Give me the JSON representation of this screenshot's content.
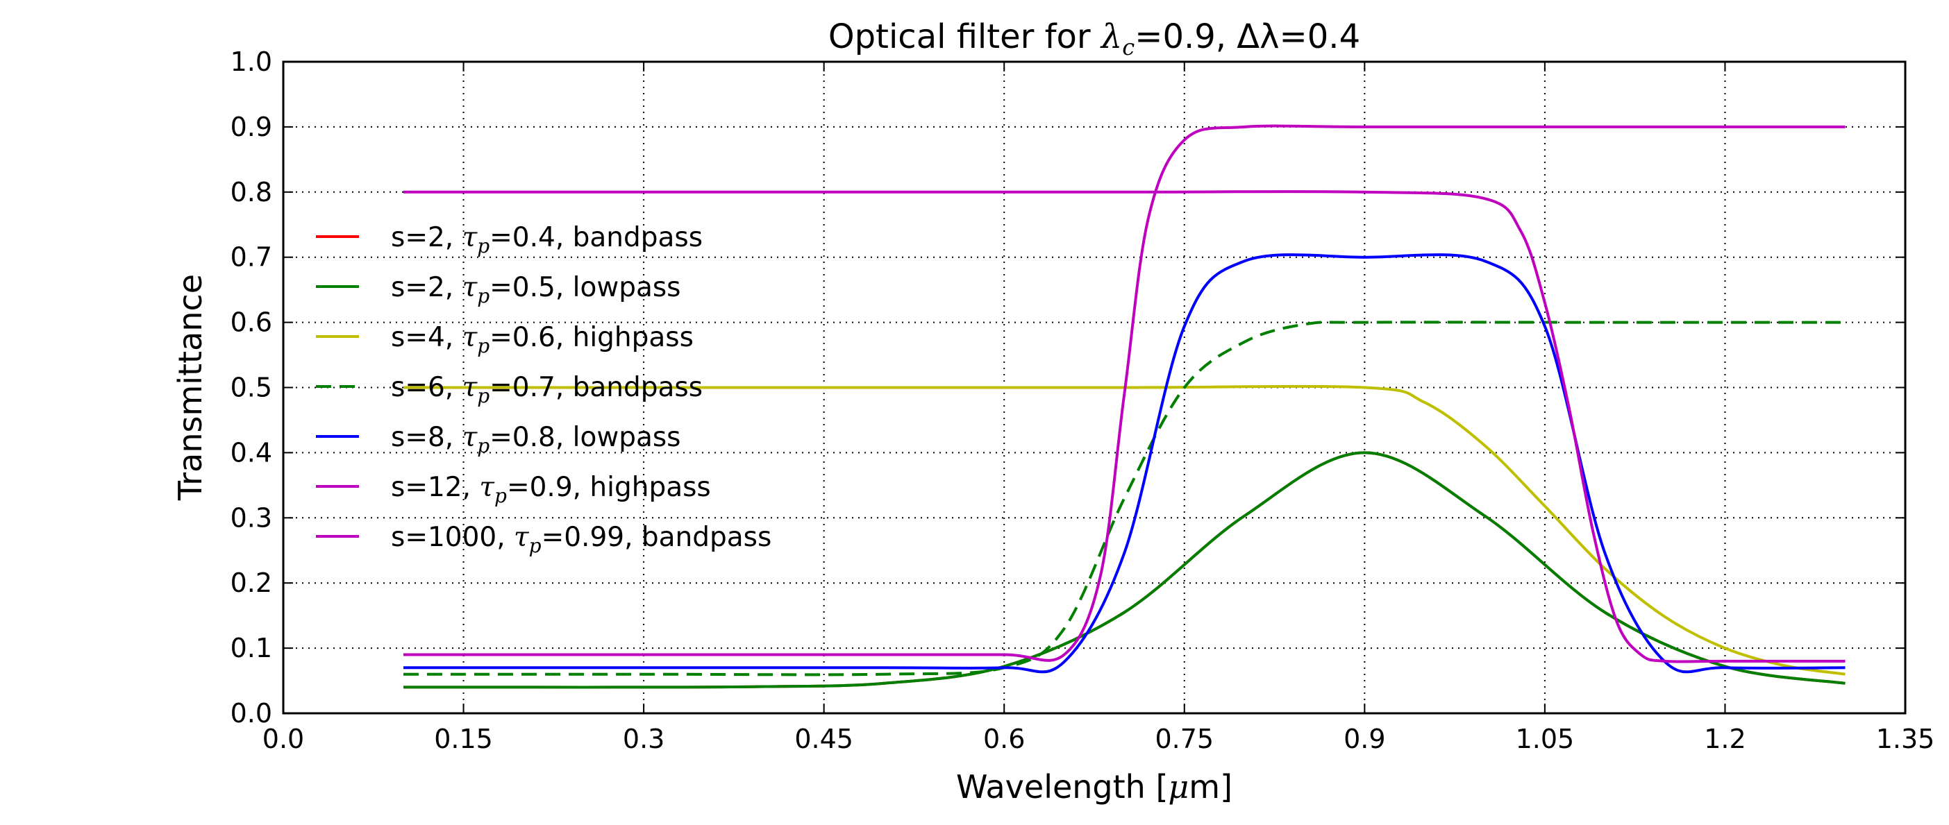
{
  "chart_data": {
    "type": "line",
    "title": "Optical filter for λ_c=0.9, Δλ=0.4",
    "title_parts": {
      "prefix": "Optical filter for ",
      "lambda": "λ",
      "sub_c": "c",
      "mid": "=0.9, ",
      "delta_lambda": "Δλ",
      "suffix": "=0.4"
    },
    "xlabel": "Wavelength [μm]",
    "xlabel_parts": {
      "prefix": "Wavelength [",
      "mu": "μ",
      "suffix": "m]"
    },
    "ylabel": "Transmittance",
    "xlim": [
      0.0,
      1.35
    ],
    "ylim": [
      0.0,
      1.0
    ],
    "xticks": [
      0.0,
      0.15,
      0.3,
      0.45,
      0.6,
      0.75,
      0.9,
      1.05,
      1.2,
      1.35
    ],
    "xtick_labels": [
      "0.0",
      "0.15",
      "0.3",
      "0.45",
      "0.6",
      "0.75",
      "0.9",
      "1.05",
      "1.2",
      "1.35"
    ],
    "yticks": [
      0.0,
      0.1,
      0.2,
      0.3,
      0.4,
      0.5,
      0.6,
      0.7,
      0.8,
      0.9,
      1.0
    ],
    "ytick_labels": [
      "0.0",
      "0.1",
      "0.2",
      "0.3",
      "0.4",
      "0.5",
      "0.6",
      "0.7",
      "0.8",
      "0.9",
      "1.0"
    ],
    "grid": true,
    "legend_position": "center-left",
    "series": [
      {
        "name": "s=2, τp=0.4, bandpass",
        "s": 2,
        "tau_p": 0.4,
        "kind": "bandpass",
        "color": "#ff0000",
        "style": "solid",
        "label": {
          "prefix": "s=2, ",
          "tau": "τ",
          "sub": "p",
          "suffix": "=0.4, bandpass"
        },
        "x": [
          0.1,
          0.2,
          0.3,
          0.4,
          0.5,
          0.6,
          0.7,
          0.8,
          0.9,
          1.0,
          1.1,
          1.2,
          1.3
        ],
        "y": [
          0.04,
          0.04,
          0.04,
          0.041,
          0.046,
          0.072,
          0.155,
          0.303,
          0.4,
          0.303,
          0.155,
          0.072,
          0.046
        ]
      },
      {
        "name": "s=2, τp=0.5, lowpass",
        "s": 2,
        "tau_p": 0.5,
        "kind": "lowpass",
        "color": "#007f00",
        "style": "solid",
        "label": {
          "prefix": "s=2, ",
          "tau": "τ",
          "sub": "p",
          "suffix": "=0.5, lowpass"
        },
        "x": [
          0.1,
          0.2,
          0.3,
          0.4,
          0.5,
          0.6,
          0.7,
          0.8,
          0.9,
          1.0,
          1.1,
          1.2,
          1.3
        ],
        "y": [
          0.04,
          0.04,
          0.04,
          0.041,
          0.046,
          0.072,
          0.155,
          0.303,
          0.4,
          0.303,
          0.155,
          0.072,
          0.046
        ]
      },
      {
        "name": "s=4, τp=0.6, highpass",
        "s": 4,
        "tau_p": 0.6,
        "kind": "highpass",
        "color": "#bfbf00",
        "style": "solid",
        "label": {
          "prefix": "s=4, ",
          "tau": "τ",
          "sub": "p",
          "suffix": "=0.6, highpass"
        },
        "x": [
          0.1,
          0.3,
          0.5,
          0.7,
          0.9,
          0.95,
          1.0,
          1.05,
          1.1,
          1.15,
          1.2,
          1.25,
          1.3
        ],
        "y": [
          0.5,
          0.5,
          0.5,
          0.5,
          0.5,
          0.477,
          0.411,
          0.318,
          0.222,
          0.148,
          0.1,
          0.073,
          0.06
        ]
      },
      {
        "name": "s=6, τp=0.7, bandpass",
        "s": 6,
        "tau_p": 0.7,
        "kind": "bandpass",
        "color": "#007f00",
        "style": "dashed",
        "label": {
          "prefix": "s=6, ",
          "tau": "τ",
          "sub": "p",
          "suffix": "=0.7, bandpass"
        },
        "x": [
          0.1,
          0.3,
          0.5,
          0.6,
          0.65,
          0.7,
          0.75,
          0.8,
          0.85,
          0.9,
          1.1,
          1.3
        ],
        "y": [
          0.06,
          0.06,
          0.06,
          0.07,
          0.13,
          0.33,
          0.5,
          0.57,
          0.597,
          0.6,
          0.6,
          0.6
        ]
      },
      {
        "name": "s=8, τp=0.8, lowpass",
        "s": 8,
        "tau_p": 0.8,
        "kind": "lowpass",
        "color": "#0000ff",
        "style": "solid",
        "label": {
          "prefix": "s=8, ",
          "tau": "τ",
          "sub": "p",
          "suffix": "=0.8, lowpass"
        },
        "x": [
          0.1,
          0.3,
          0.5,
          0.6,
          0.65,
          0.7,
          0.75,
          0.8,
          0.9,
          1.0,
          1.05,
          1.1,
          1.15,
          1.2,
          1.3
        ],
        "y": [
          0.07,
          0.07,
          0.07,
          0.07,
          0.079,
          0.246,
          0.594,
          0.694,
          0.7,
          0.694,
          0.594,
          0.246,
          0.079,
          0.07,
          0.07
        ]
      },
      {
        "name": "s=12, τp=0.9, highpass",
        "s": 12,
        "tau_p": 0.9,
        "kind": "highpass",
        "color": "#bf00bf",
        "style": "solid",
        "label": {
          "prefix": "s=12, ",
          "tau": "τ",
          "sub": "p",
          "suffix": "=0.9, highpass"
        },
        "x": [
          0.1,
          0.3,
          0.5,
          0.6,
          0.65,
          0.68,
          0.7,
          0.72,
          0.75,
          0.8,
          0.9,
          1.1,
          1.3
        ],
        "y": [
          0.09,
          0.09,
          0.09,
          0.09,
          0.09,
          0.21,
          0.49,
          0.76,
          0.88,
          0.9,
          0.9,
          0.9,
          0.9
        ]
      },
      {
        "name": "s=1000, τp=0.99, bandpass",
        "s": 1000,
        "tau_p": 0.99,
        "kind": "bandpass",
        "color": "#bf00bf",
        "style": "solid",
        "label": {
          "prefix": "s=1000, ",
          "tau": "τ",
          "sub": "p",
          "suffix": "=0.99, bandpass"
        },
        "x": [
          0.1,
          0.3,
          0.5,
          0.7,
          0.9,
          1.0,
          1.03,
          1.05,
          1.07,
          1.09,
          1.11,
          1.13,
          1.15,
          1.2,
          1.3
        ],
        "y": [
          0.8,
          0.8,
          0.8,
          0.8,
          0.8,
          0.79,
          0.74,
          0.63,
          0.47,
          0.28,
          0.14,
          0.09,
          0.08,
          0.08,
          0.08
        ]
      }
    ]
  }
}
